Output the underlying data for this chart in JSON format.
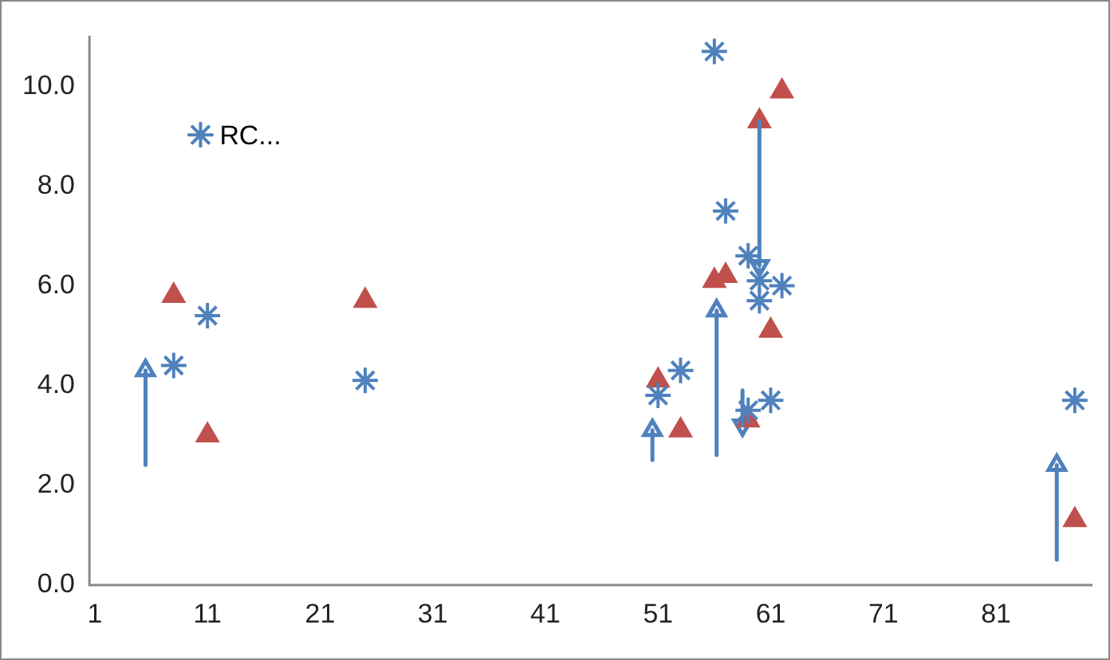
{
  "chart_data": {
    "type": "scatter",
    "legend": "top left",
    "grid": false,
    "xlim": [
      0.5,
      89.5
    ],
    "xticks": [
      1,
      11,
      21,
      31,
      41,
      51,
      61,
      71,
      81
    ],
    "ylim": [
      0,
      11
    ],
    "yticks": [
      {
        "value": 0,
        "label": "0.0"
      },
      {
        "value": 2,
        "label": "2.0"
      },
      {
        "value": 4,
        "label": "4.0"
      },
      {
        "value": 6,
        "label": "6.0"
      },
      {
        "value": 8,
        "label": "8.0"
      },
      {
        "value": 10,
        "label": "10.0"
      }
    ],
    "series": [
      {
        "name": "RC...",
        "color": "#4f81bd",
        "marker": "cross",
        "x": [
          8,
          11,
          25,
          51,
          53,
          56,
          57,
          59,
          60,
          60,
          62,
          61,
          59,
          88
        ],
        "values": [
          4.4,
          5.4,
          4.1,
          3.8,
          4.3,
          10.7,
          7.5,
          6.6,
          6.1,
          5.7,
          6.0,
          3.7,
          3.5,
          3.7
        ]
      },
      {
        "color": "#c0504d",
        "marker": "triangle",
        "x": [
          8,
          11,
          25,
          51,
          53,
          56,
          57,
          60,
          62,
          61,
          59,
          88
        ],
        "values": [
          5.8,
          3.0,
          5.7,
          4.1,
          3.1,
          6.1,
          6.2,
          9.3,
          9.9,
          5.1,
          3.3,
          1.3
        ]
      },
      {
        "color": "#4f81bd",
        "marker": "triangle",
        "x": [
          5.5,
          50.5,
          56.2,
          60,
          58.5,
          86.4
        ],
        "values": [
          4.3,
          3.1,
          5.5,
          6.4,
          3.2,
          2.4
        ],
        "errors": [
          [
            2.4,
            4.3
          ],
          [
            2.5,
            3.1
          ],
          [
            2.6,
            5.5
          ],
          [
            6.4,
            9.3
          ],
          [
            3.2,
            3.9
          ],
          [
            0.5,
            2.4
          ]
        ]
      }
    ]
  }
}
